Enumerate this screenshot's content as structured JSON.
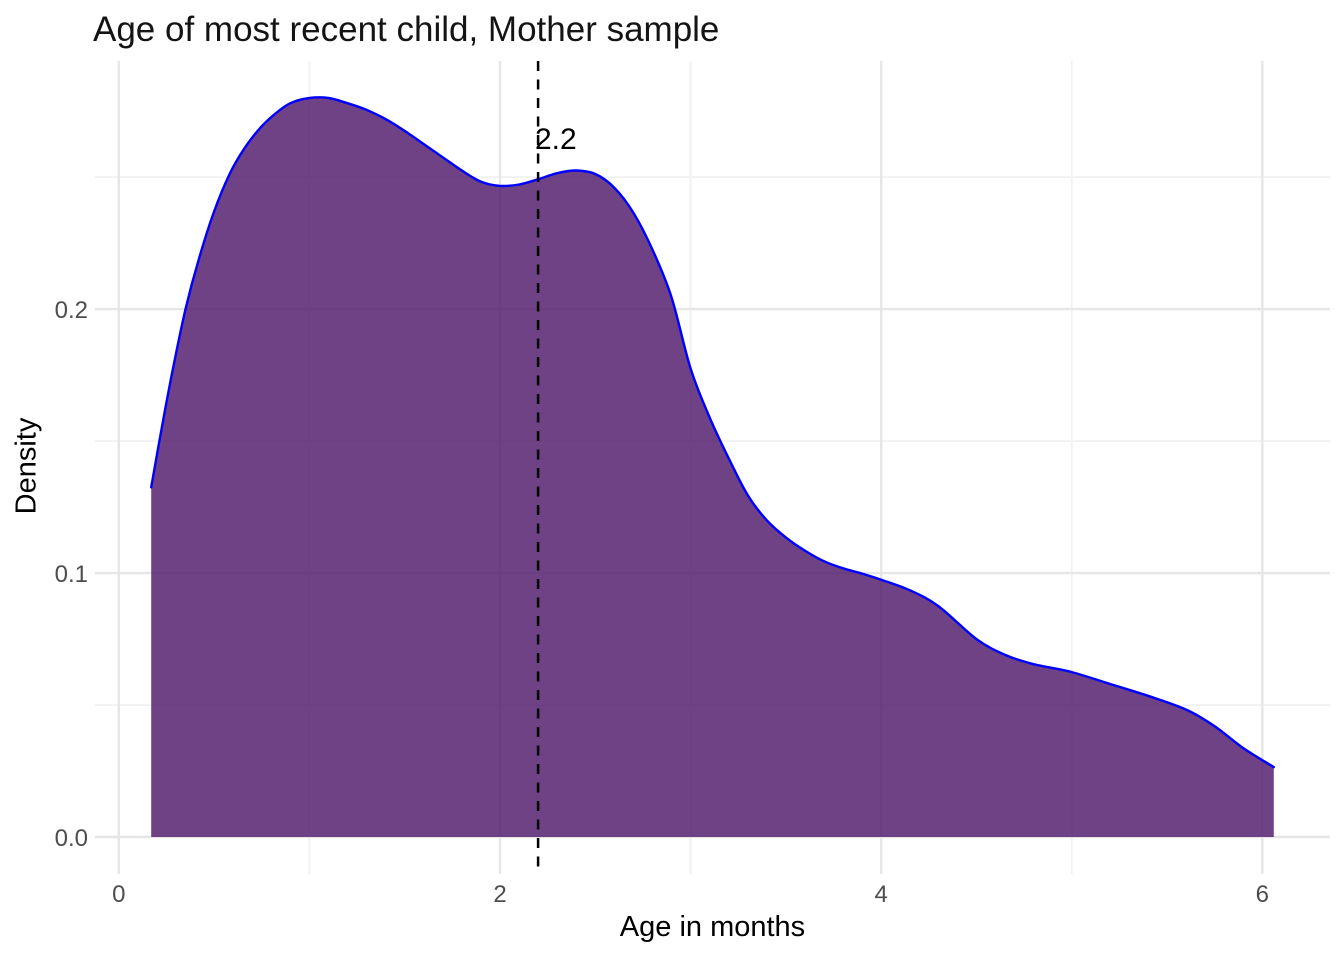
{
  "chart_data": {
    "type": "area",
    "subtype": "density",
    "title": "Age of most recent child, Mother sample",
    "xlabel": "Age in months",
    "ylabel": "Density",
    "xlim": [
      -0.125,
      6.355
    ],
    "ylim": [
      -0.014,
      0.294
    ],
    "x_ticks": [
      {
        "label": "0",
        "value": 0
      },
      {
        "label": "2",
        "value": 2
      },
      {
        "label": "4",
        "value": 4
      },
      {
        "label": "6",
        "value": 6
      }
    ],
    "y_ticks": [
      {
        "label": "0.0",
        "value": 0.0
      },
      {
        "label": "0.1",
        "value": 0.1
      },
      {
        "label": "0.2",
        "value": 0.2
      }
    ],
    "x_minor_gridlines": [
      1,
      3,
      5
    ],
    "y_minor_gridlines": [
      0.05,
      0.15,
      0.25
    ],
    "grid": "on",
    "legend": "none",
    "vline": {
      "x": 2.2,
      "label": "2.2",
      "style": "dashed"
    },
    "colors": {
      "area_fill": "#4E1869",
      "area_fill_opacity": 0.82,
      "curve_stroke": "#0000FF",
      "vline_stroke": "#000000",
      "grid_major": "#E6E6E6",
      "grid_minor": "#F1F1F1",
      "tick_text": "#4D4D4D"
    },
    "series": [
      {
        "name": "density",
        "points": [
          [
            0.17,
            0.1325
          ],
          [
            0.22,
            0.153
          ],
          [
            0.28,
            0.176
          ],
          [
            0.35,
            0.2
          ],
          [
            0.42,
            0.219
          ],
          [
            0.5,
            0.237
          ],
          [
            0.58,
            0.251
          ],
          [
            0.66,
            0.261
          ],
          [
            0.74,
            0.2685
          ],
          [
            0.82,
            0.274
          ],
          [
            0.9,
            0.278
          ],
          [
            1.0,
            0.28
          ],
          [
            1.1,
            0.28
          ],
          [
            1.2,
            0.278
          ],
          [
            1.3,
            0.2755
          ],
          [
            1.4,
            0.272
          ],
          [
            1.5,
            0.2675
          ],
          [
            1.6,
            0.2625
          ],
          [
            1.7,
            0.2575
          ],
          [
            1.8,
            0.2525
          ],
          [
            1.9,
            0.2483
          ],
          [
            2.0,
            0.2467
          ],
          [
            2.1,
            0.2472
          ],
          [
            2.2,
            0.2492
          ],
          [
            2.3,
            0.2515
          ],
          [
            2.4,
            0.2525
          ],
          [
            2.5,
            0.2512
          ],
          [
            2.6,
            0.246
          ],
          [
            2.7,
            0.2365
          ],
          [
            2.8,
            0.2225
          ],
          [
            2.9,
            0.2045
          ],
          [
            3.0,
            0.1775
          ],
          [
            3.1,
            0.159
          ],
          [
            3.2,
            0.1435
          ],
          [
            3.3,
            0.1295
          ],
          [
            3.4,
            0.12
          ],
          [
            3.5,
            0.1135
          ],
          [
            3.6,
            0.1085
          ],
          [
            3.7,
            0.1045
          ],
          [
            3.8,
            0.1018
          ],
          [
            3.9,
            0.0998
          ],
          [
            4.0,
            0.0975
          ],
          [
            4.15,
            0.0935
          ],
          [
            4.3,
            0.0875
          ],
          [
            4.5,
            0.075
          ],
          [
            4.65,
            0.069
          ],
          [
            4.8,
            0.0655
          ],
          [
            5.0,
            0.0625
          ],
          [
            5.2,
            0.058
          ],
          [
            5.4,
            0.0535
          ],
          [
            5.6,
            0.0483
          ],
          [
            5.75,
            0.042
          ],
          [
            5.9,
            0.0337
          ],
          [
            6.06,
            0.0265
          ]
        ]
      }
    ]
  }
}
